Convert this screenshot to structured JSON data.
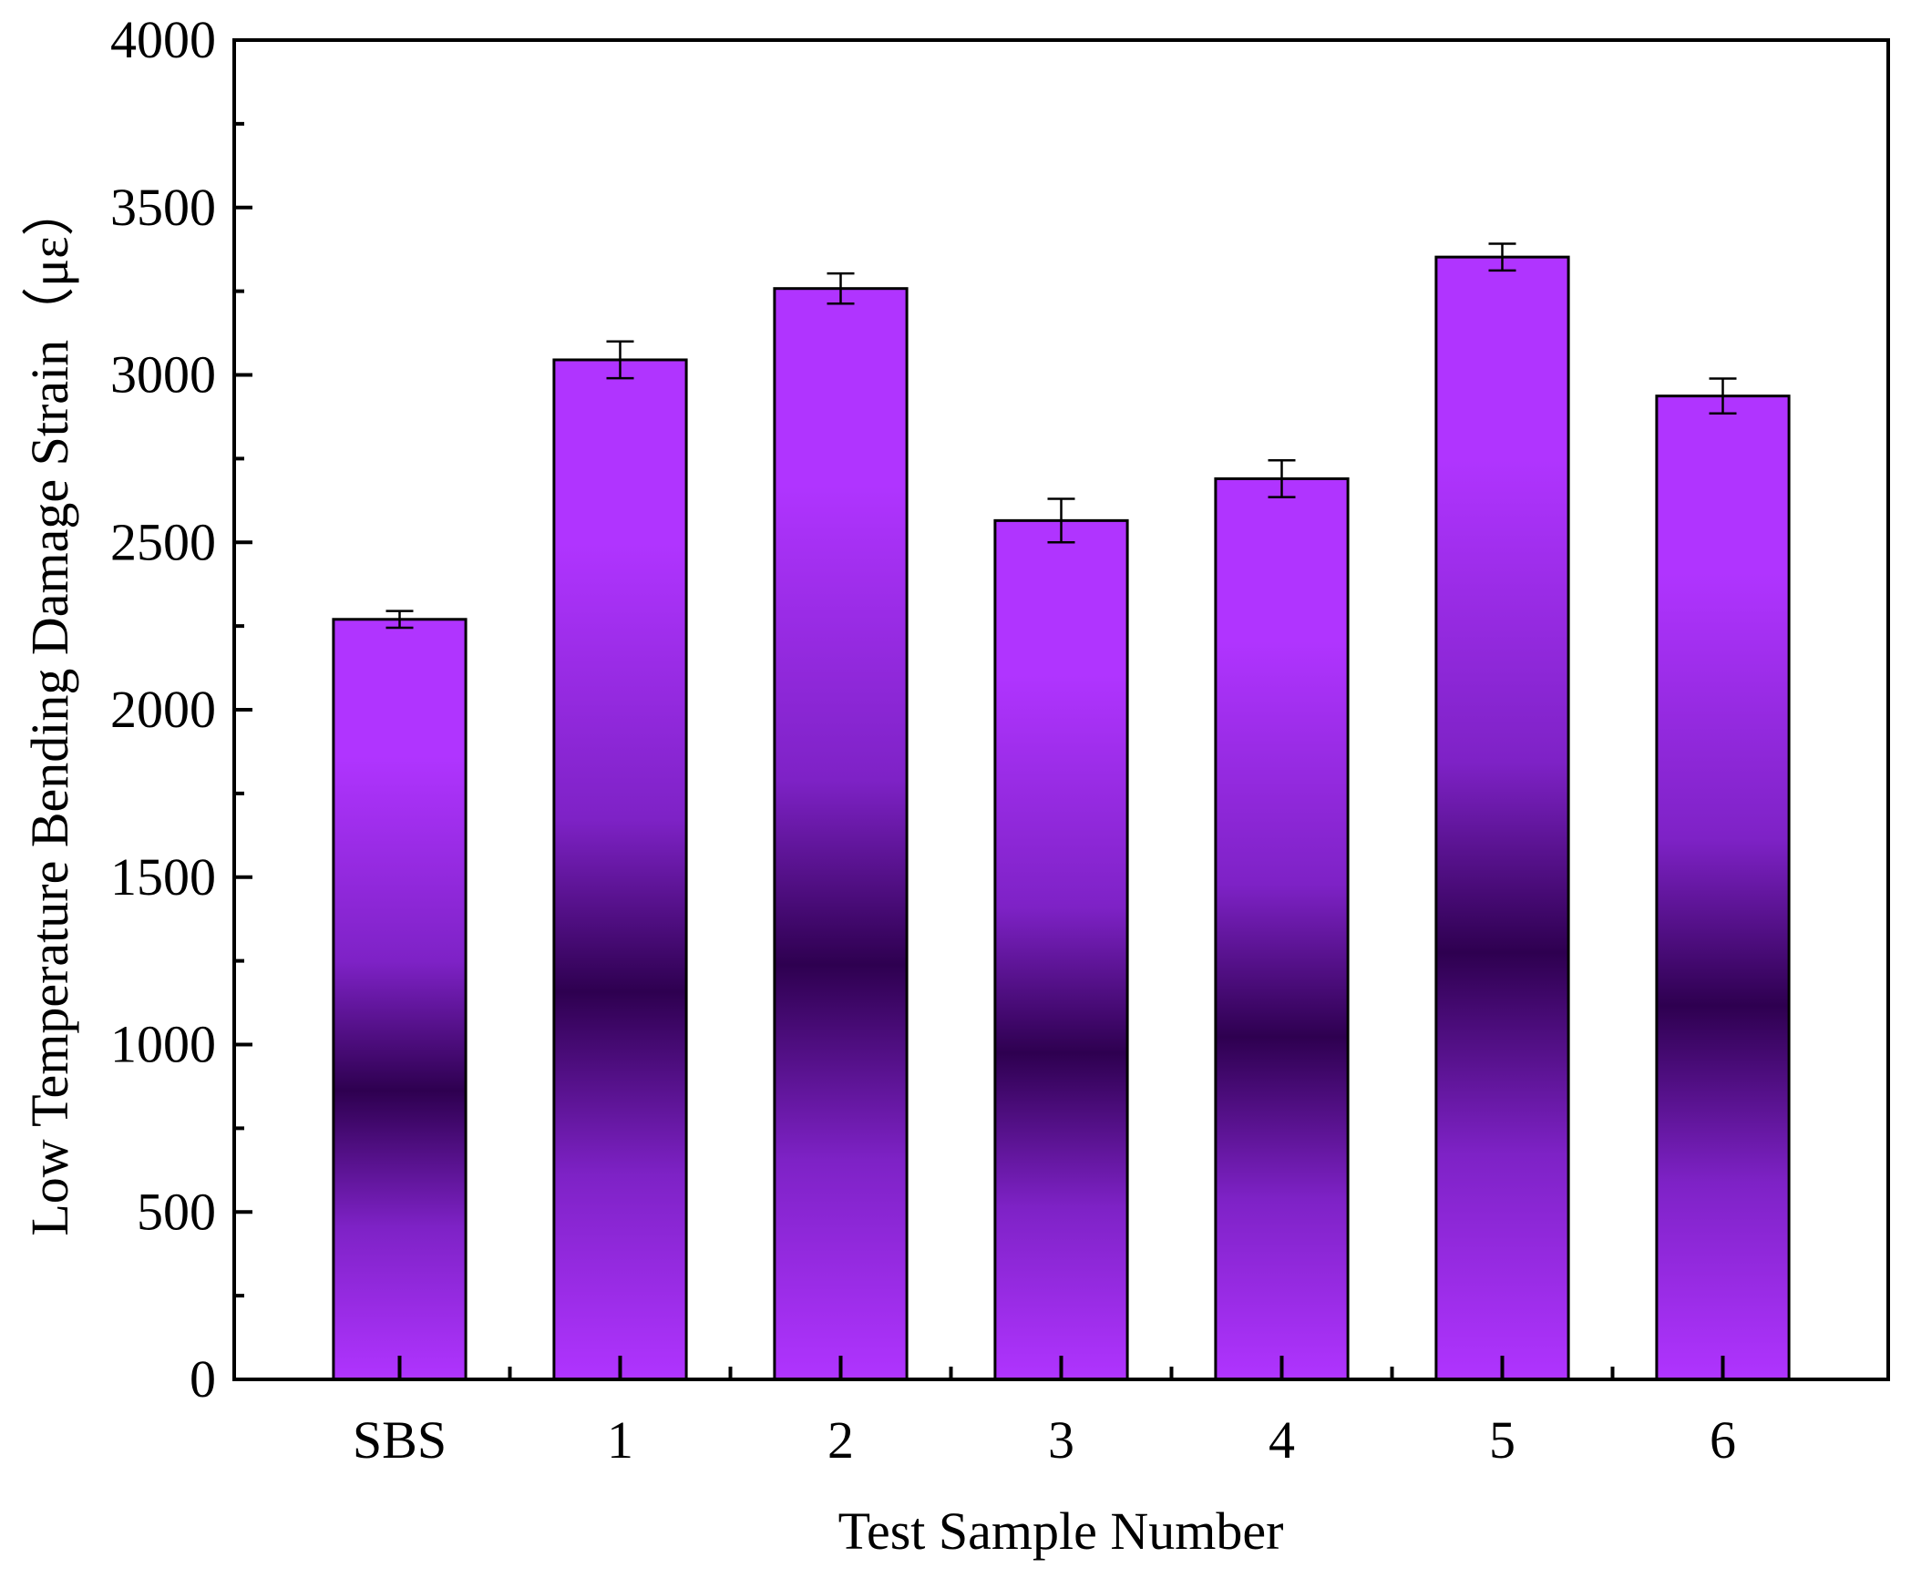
{
  "chart_data": {
    "type": "bar",
    "title": "",
    "xlabel": "Test Sample Number",
    "ylabel": "Low Temperature Bending Damage Strain（με）",
    "categories": [
      "SBS",
      "1",
      "2",
      "3",
      "4",
      "5",
      "6"
    ],
    "values": [
      2270,
      3045,
      3258,
      2565,
      2690,
      3352,
      2937
    ],
    "error": [
      25,
      55,
      45,
      65,
      55,
      40,
      52
    ],
    "ylim": [
      0,
      4000
    ],
    "yticks": [
      0,
      500,
      1000,
      1500,
      2000,
      2500,
      3000,
      3500,
      4000
    ],
    "grid": false,
    "legend": "none",
    "colors": {
      "bar_light": "#b034ff",
      "bar_mid": "#7e22c6",
      "bar_dark": "#2e0050",
      "outline": "#000000"
    }
  }
}
